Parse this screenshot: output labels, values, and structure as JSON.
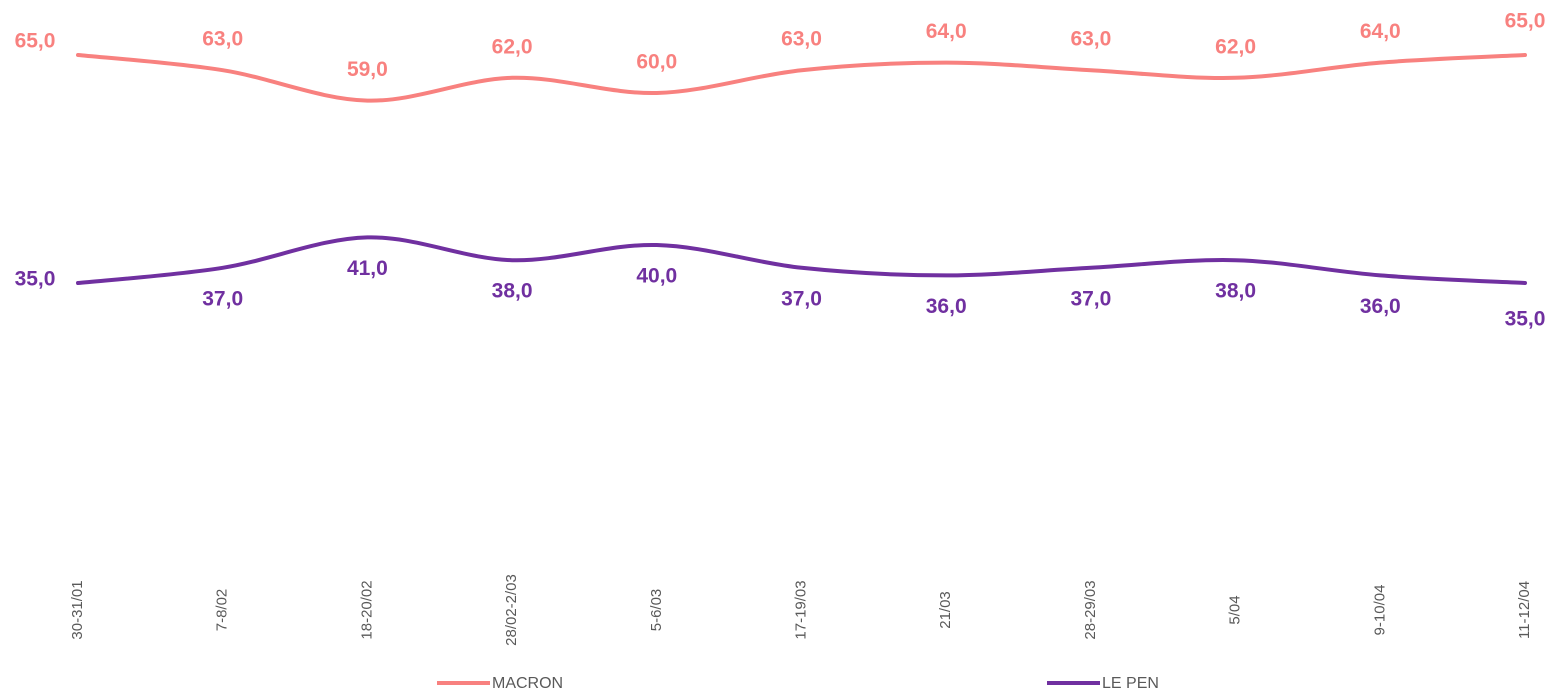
{
  "chart_data": {
    "type": "line",
    "categories": [
      "30-31/01",
      "7-8/02",
      "18-20/02",
      "28/02-2/03",
      "5-6/03",
      "17-19/03",
      "21/03",
      "28-29/03",
      "5/04",
      "9-10/04",
      "11-12/04"
    ],
    "series": [
      {
        "name": "MACRON",
        "color": "#f8817f",
        "values": [
          65,
          63,
          59,
          62,
          60,
          63,
          64,
          63,
          62,
          64,
          65
        ],
        "value_labels": [
          "65,0",
          "63,0",
          "59,0",
          "62,0",
          "60,0",
          "63,0",
          "64,0",
          "63,0",
          "62,0",
          "64,0",
          "65,0"
        ]
      },
      {
        "name": "LE PEN",
        "color": "#7030a0",
        "values": [
          35,
          37,
          41,
          38,
          40,
          37,
          36,
          37,
          38,
          36,
          35
        ],
        "value_labels": [
          "35,0",
          "37,0",
          "41,0",
          "38,0",
          "40,0",
          "37,0",
          "36,0",
          "37,0",
          "38,0",
          "36,0",
          "35,0"
        ]
      }
    ],
    "ylim": [
      0,
      70
    ],
    "legend": "bottom"
  }
}
